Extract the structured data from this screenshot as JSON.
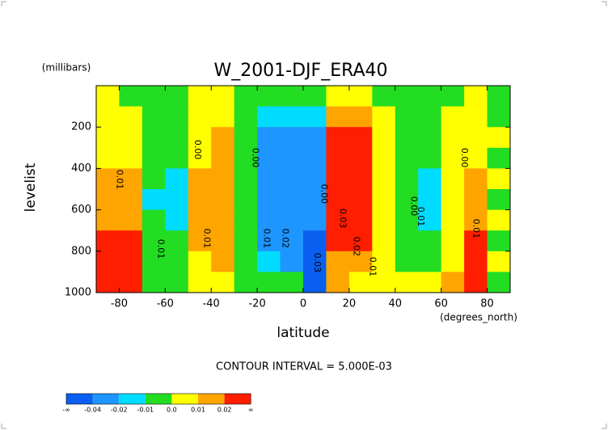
{
  "chart_data": {
    "type": "contour",
    "title": "W_2001-DJF_ERA40",
    "y_unit_label": "(millibars)",
    "ylabel": "levelist",
    "xlabel": "latitude",
    "x_unit_label": "(degrees_north)",
    "footnote": "CONTOUR INTERVAL = 5.000E-03",
    "xlim": [
      -90,
      90
    ],
    "xticks": [
      -80,
      -60,
      -40,
      -20,
      0,
      20,
      40,
      60,
      80
    ],
    "ylim": [
      1000,
      0
    ],
    "yticks": [
      200,
      400,
      600,
      800,
      1000
    ],
    "x": [
      -85,
      -75,
      -65,
      -55,
      -45,
      -35,
      -25,
      -15,
      -5,
      5,
      15,
      25,
      35,
      45,
      55,
      65,
      75,
      85
    ],
    "y": [
      50,
      150,
      250,
      350,
      450,
      550,
      650,
      750,
      850,
      950
    ],
    "z": [
      [
        0.005,
        -0.003,
        -0.004,
        -0.003,
        0.004,
        0.003,
        -0.003,
        -0.004,
        -0.005,
        -0.004,
        0.006,
        0.006,
        -0.002,
        -0.004,
        -0.005,
        -0.003,
        0.003,
        -0.003
      ],
      [
        0.005,
        0.004,
        -0.006,
        -0.005,
        0.006,
        0.007,
        -0.004,
        -0.012,
        -0.014,
        -0.016,
        0.018,
        0.017,
        0.004,
        -0.004,
        -0.006,
        0.003,
        0.005,
        -0.004
      ],
      [
        0.005,
        0.006,
        -0.005,
        -0.007,
        0.008,
        0.011,
        -0.005,
        -0.022,
        -0.024,
        -0.026,
        0.024,
        0.025,
        0.006,
        -0.005,
        -0.008,
        0.004,
        0.006,
        0.004
      ],
      [
        0.008,
        0.008,
        -0.007,
        -0.009,
        0.009,
        0.014,
        -0.006,
        -0.026,
        -0.028,
        -0.032,
        0.028,
        0.028,
        0.007,
        -0.005,
        -0.009,
        0.005,
        0.008,
        -0.003
      ],
      [
        0.015,
        0.012,
        -0.008,
        -0.012,
        0.012,
        0.016,
        -0.007,
        -0.028,
        -0.03,
        -0.035,
        0.03,
        0.03,
        0.008,
        -0.006,
        -0.012,
        0.006,
        0.012,
        0.004
      ],
      [
        0.015,
        0.015,
        -0.012,
        -0.014,
        0.014,
        0.017,
        -0.007,
        -0.028,
        -0.031,
        -0.036,
        0.031,
        0.03,
        0.008,
        -0.006,
        -0.014,
        0.006,
        0.016,
        -0.004
      ],
      [
        0.018,
        0.018,
        -0.009,
        -0.013,
        0.013,
        0.016,
        -0.006,
        -0.026,
        -0.03,
        -0.038,
        0.03,
        0.028,
        0.007,
        -0.005,
        -0.013,
        0.007,
        0.017,
        0.005
      ],
      [
        0.03,
        0.025,
        -0.006,
        -0.008,
        0.011,
        0.014,
        -0.005,
        -0.023,
        -0.028,
        -0.042,
        0.024,
        0.022,
        0.006,
        -0.004,
        -0.008,
        0.008,
        0.022,
        -0.004
      ],
      [
        0.03,
        0.03,
        -0.004,
        -0.005,
        0.008,
        0.012,
        -0.004,
        -0.016,
        -0.024,
        -0.045,
        0.017,
        0.016,
        0.005,
        -0.003,
        -0.004,
        0.009,
        0.028,
        0.005
      ],
      [
        0.03,
        0.03,
        -0.003,
        -0.004,
        0.006,
        0.008,
        -0.003,
        -0.008,
        -0.008,
        -0.042,
        0.012,
        0.008,
        0.004,
        0.003,
        0.004,
        0.012,
        0.03,
        -0.003
      ]
    ],
    "levels": [
      -0.04,
      -0.02,
      -0.01,
      {
        "value": 0,
        "label": "0.0"
      },
      0.01,
      0.02
    ],
    "colorbar_ends": [
      "-∞",
      "∞"
    ],
    "colors": [
      "#0a5ff0",
      "#1e96ff",
      "#00dcff",
      "#22dd22",
      "#ffff00",
      "#ffa500",
      "#ff1e00"
    ],
    "annotations": [
      {
        "text": "0.00",
        "x": -46,
        "y": 309
      },
      {
        "text": "0.01",
        "x": -80,
        "y": 453
      },
      {
        "text": "0.01",
        "x": -62,
        "y": 789
      },
      {
        "text": "0.01",
        "x": -42,
        "y": 738
      },
      {
        "text": "0.00",
        "x": -21,
        "y": 348
      },
      {
        "text": "0.01",
        "x": -16,
        "y": 738
      },
      {
        "text": "0.02",
        "x": -8,
        "y": 738
      },
      {
        "text": "0.00",
        "x": 9,
        "y": 523
      },
      {
        "text": "0.03",
        "x": 17,
        "y": 641
      },
      {
        "text": "0.02",
        "x": 23,
        "y": 777
      },
      {
        "text": "0.01",
        "x": 30,
        "y": 875
      },
      {
        "text": "0.03",
        "x": 6,
        "y": 855
      },
      {
        "text": "0.00",
        "x": 48,
        "y": 582
      },
      {
        "text": "0.01",
        "x": 51,
        "y": 633
      },
      {
        "text": "0.00",
        "x": 70,
        "y": 348
      },
      {
        "text": "0.01",
        "x": 75,
        "y": 691
      }
    ]
  }
}
